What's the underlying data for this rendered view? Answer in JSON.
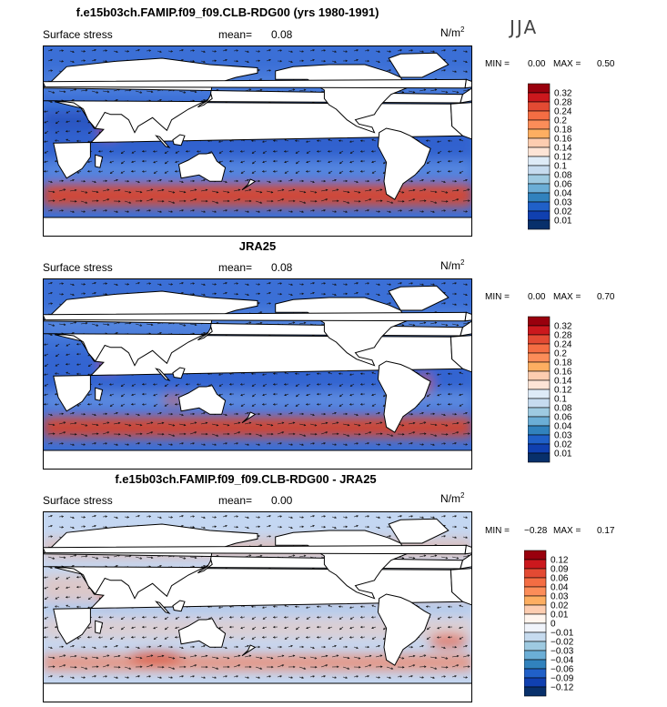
{
  "season": "JJA",
  "chart_data": [
    {
      "type": "heatmap",
      "title": "f.e15b03ch.FAMIP.f09_f09.CLB-RDG00 (yrs 1980-1991)",
      "variable": "Surface stress",
      "mean_label": "mean=",
      "mean": "0.08",
      "units": "N/m",
      "units_exp": "2",
      "min_label": "MIN =",
      "min": "0.00",
      "max_label": "MAX =",
      "max": "0.50",
      "levels": [
        "0.32",
        "0.28",
        "0.24",
        "0.2",
        "0.18",
        "0.16",
        "0.14",
        "0.12",
        "0.1",
        "0.08",
        "0.06",
        "0.04",
        "0.03",
        "0.02",
        "0.01"
      ],
      "colors": [
        "#99000d",
        "#cb181d",
        "#e34a33",
        "#f46d43",
        "#fc8d59",
        "#fdae61",
        "#fdcdb0",
        "#fde4d6",
        "#deebf7",
        "#c6dbef",
        "#9ecae1",
        "#6baed6",
        "#3182bd",
        "#2060c8",
        "#1040b0",
        "#08306b"
      ]
    },
    {
      "type": "heatmap",
      "title": "JRA25",
      "variable": "Surface stress",
      "mean_label": "mean=",
      "mean": "0.08",
      "units": "N/m",
      "units_exp": "2",
      "min_label": "MIN =",
      "min": "0.00",
      "max_label": "MAX =",
      "max": "0.70",
      "levels": [
        "0.32",
        "0.28",
        "0.24",
        "0.2",
        "0.18",
        "0.16",
        "0.14",
        "0.12",
        "0.1",
        "0.08",
        "0.06",
        "0.04",
        "0.03",
        "0.02",
        "0.01"
      ],
      "colors": [
        "#99000d",
        "#cb181d",
        "#e34a33",
        "#f46d43",
        "#fc8d59",
        "#fdae61",
        "#fdcdb0",
        "#fde4d6",
        "#deebf7",
        "#c6dbef",
        "#9ecae1",
        "#6baed6",
        "#3182bd",
        "#2060c8",
        "#1040b0",
        "#08306b"
      ]
    },
    {
      "type": "heatmap",
      "title": "f.e15b03ch.FAMIP.f09_f09.CLB-RDG00 - JRA25",
      "variable": "Surface stress",
      "mean_label": "mean=",
      "mean": "0.00",
      "units": "N/m",
      "units_exp": "2",
      "min_label": "MIN =",
      "min": "−0.28",
      "max_label": "MAX =",
      "max": "0.17",
      "levels": [
        "0.12",
        "0.09",
        "0.06",
        "0.04",
        "0.03",
        "0.02",
        "0.01",
        "0",
        "−0.01",
        "−0.02",
        "−0.03",
        "−0.04",
        "−0.06",
        "−0.09",
        "−0.12"
      ],
      "colors": [
        "#99000d",
        "#cb181d",
        "#e34a33",
        "#f46d43",
        "#fc8d59",
        "#fdae61",
        "#fdcdb0",
        "#fff5ee",
        "#f0f4fb",
        "#c6dbef",
        "#9ecae1",
        "#6baed6",
        "#3182bd",
        "#2060c8",
        "#1040b0",
        "#08306b"
      ]
    }
  ]
}
